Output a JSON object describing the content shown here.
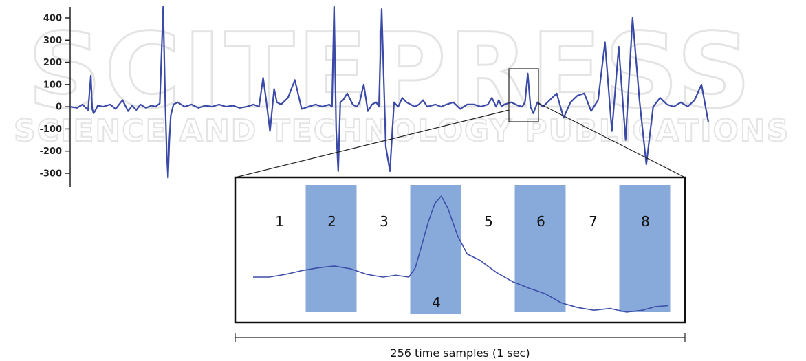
{
  "watermark": {
    "line1": "SCITEPRESS",
    "line2": "SCIENCE AND TECHNOLOGY PUBLICATIONS"
  },
  "span": {
    "label": "256 time samples (1 sec)"
  },
  "chart_data": [
    {
      "type": "line",
      "title": "",
      "xlabel": "",
      "ylabel": "",
      "ylim": [
        -320,
        450
      ],
      "yticks": [
        400,
        300,
        200,
        100,
        0,
        -100,
        -200,
        -300
      ],
      "ytick_labels": [
        "400",
        "300",
        "200",
        "100",
        "0",
        "-100",
        "-200",
        "-300"
      ],
      "grid": false,
      "line_color": "#3a4aa6",
      "series": [
        {
          "x": [
            0,
            10,
            18,
            26,
            30,
            32,
            34,
            36,
            40,
            48,
            58,
            66,
            76,
            84,
            90,
            96,
            102,
            110,
            118,
            124,
            130,
            135,
            138,
            140,
            142,
            144,
            146,
            150,
            156,
            166,
            176,
            186,
            196,
            206,
            216,
            226,
            236,
            246,
            256,
            266,
            274,
            280,
            284,
            290,
            296,
            300,
            306,
            316,
            326,
            336,
            346,
            356,
            366,
            376,
            380,
            383,
            386,
            389,
            392,
            396,
            402,
            410,
            416,
            420,
            426,
            432,
            438,
            444,
            448,
            452,
            458,
            464,
            470,
            476,
            482,
            488,
            494,
            500,
            506,
            512,
            518,
            524,
            530,
            538,
            546,
            556,
            566,
            576,
            586,
            596,
            606,
            612,
            618,
            622,
            626,
            630,
            640,
            650,
            656,
            660,
            664,
            668,
            672,
            678,
            686,
            696,
            706,
            716,
            726,
            736,
            746,
            756,
            766,
            776,
            786,
            796,
            806,
            816,
            826,
            836,
            846,
            856,
            866,
            876,
            886,
            896,
            906,
            916,
            926
          ],
          "values": [
            0,
            -5,
            10,
            -15,
            140,
            -10,
            -30,
            -20,
            5,
            0,
            10,
            -10,
            30,
            -20,
            5,
            -15,
            10,
            -5,
            5,
            0,
            15,
            450,
            20,
            -200,
            -320,
            -150,
            -40,
            10,
            20,
            0,
            10,
            -5,
            5,
            0,
            10,
            0,
            5,
            -5,
            0,
            10,
            0,
            130,
            40,
            -110,
            80,
            20,
            10,
            40,
            120,
            -10,
            0,
            10,
            0,
            10,
            0,
            450,
            -100,
            -290,
            20,
            30,
            60,
            10,
            0,
            20,
            100,
            -20,
            10,
            20,
            0,
            440,
            -180,
            -290,
            20,
            0,
            40,
            20,
            10,
            0,
            10,
            30,
            0,
            5,
            10,
            0,
            10,
            20,
            -10,
            10,
            10,
            0,
            10,
            40,
            0,
            30,
            0,
            10,
            20,
            5,
            0,
            20,
            150,
            0,
            -30,
            20,
            0,
            30,
            60,
            -50,
            20,
            50,
            60,
            -20,
            30,
            290,
            -110,
            270,
            -150,
            400,
            30,
            -260,
            0,
            40,
            10,
            0,
            20,
            0,
            30,
            100,
            -70
          ]
        }
      ]
    },
    {
      "type": "line",
      "title": "",
      "xlabel": "",
      "ylabel": "",
      "xlim": [
        0,
        256
      ],
      "segments": [
        "1",
        "2",
        "3",
        "4",
        "5",
        "6",
        "7",
        "8"
      ],
      "shaded_segments": [
        "2",
        "4",
        "6",
        "8"
      ],
      "shade_color": "#7ba1d6",
      "line_color": "#3d4fa8",
      "series": [
        {
          "x": [
            0,
            10,
            20,
            30,
            40,
            50,
            60,
            70,
            80,
            88,
            96,
            100,
            104,
            108,
            112,
            116,
            120,
            126,
            132,
            140,
            150,
            160,
            170,
            180,
            190,
            200,
            210,
            220,
            230,
            240,
            248,
            256
          ],
          "values": [
            0.0,
            0.0,
            0.03,
            0.07,
            0.1,
            0.12,
            0.09,
            0.03,
            0.0,
            0.02,
            0.0,
            0.1,
            0.35,
            0.6,
            0.8,
            0.88,
            0.75,
            0.45,
            0.25,
            0.18,
            0.05,
            -0.05,
            -0.12,
            -0.18,
            -0.28,
            -0.33,
            -0.36,
            -0.34,
            -0.38,
            -0.36,
            -0.32,
            -0.31
          ]
        }
      ]
    }
  ]
}
